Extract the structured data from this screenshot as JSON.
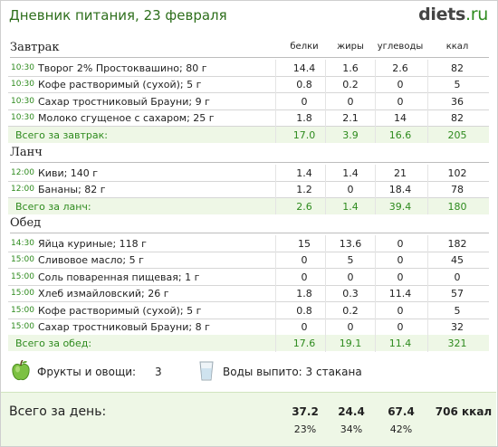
{
  "header": {
    "title": "Дневник питания, 23 февраля",
    "logo_main": "diets",
    "logo_suffix": ".ru"
  },
  "columns": {
    "proteins": "белки",
    "fats": "жиры",
    "carbs": "углеводы",
    "kcal": "ккал"
  },
  "sections": [
    {
      "title": "Завтрак",
      "items": [
        {
          "time": "10:30",
          "name": "Творог 2% Простоквашино; 80 г",
          "p": "14.4",
          "f": "1.6",
          "c": "2.6",
          "k": "82"
        },
        {
          "time": "10:30",
          "name": "Кофе растворимый (сухой); 5 г",
          "p": "0.8",
          "f": "0.2",
          "c": "0",
          "k": "5"
        },
        {
          "time": "10:30",
          "name": "Сахар тростниковый Брауни; 9 г",
          "p": "0",
          "f": "0",
          "c": "0",
          "k": "36"
        },
        {
          "time": "10:30",
          "name": "Молоко сгущеное с сахаром; 25 г",
          "p": "1.8",
          "f": "2.1",
          "c": "14",
          "k": "82"
        }
      ],
      "total": {
        "label": "Всего за завтрак:",
        "p": "17.0",
        "f": "3.9",
        "c": "16.6",
        "k": "205"
      }
    },
    {
      "title": "Ланч",
      "items": [
        {
          "time": "12:00",
          "name": "Киви; 140 г",
          "p": "1.4",
          "f": "1.4",
          "c": "21",
          "k": "102"
        },
        {
          "time": "12:00",
          "name": "Бананы; 82 г",
          "p": "1.2",
          "f": "0",
          "c": "18.4",
          "k": "78"
        }
      ],
      "total": {
        "label": "Всего за ланч:",
        "p": "2.6",
        "f": "1.4",
        "c": "39.4",
        "k": "180"
      }
    },
    {
      "title": "Обед",
      "items": [
        {
          "time": "14:30",
          "name": "Яйца куриные; 118 г",
          "p": "15",
          "f": "13.6",
          "c": "0",
          "k": "182"
        },
        {
          "time": "15:00",
          "name": "Сливовое масло; 5 г",
          "p": "0",
          "f": "5",
          "c": "0",
          "k": "45"
        },
        {
          "time": "15:00",
          "name": "Соль поваренная пищевая; 1 г",
          "p": "0",
          "f": "0",
          "c": "0",
          "k": "0"
        },
        {
          "time": "15:00",
          "name": "Хлеб измайловский; 26 г",
          "p": "1.8",
          "f": "0.3",
          "c": "11.4",
          "k": "57"
        },
        {
          "time": "15:00",
          "name": "Кофе растворимый (сухой); 5 г",
          "p": "0.8",
          "f": "0.2",
          "c": "0",
          "k": "5"
        },
        {
          "time": "15:00",
          "name": "Сахар тростниковый Брауни; 8 г",
          "p": "0",
          "f": "0",
          "c": "0",
          "k": "32"
        }
      ],
      "total": {
        "label": "Всего за обед:",
        "p": "17.6",
        "f": "19.1",
        "c": "11.4",
        "k": "321"
      }
    }
  ],
  "extras": {
    "fruits_label": "Фрукты и овощи:",
    "fruits_value": "3",
    "water_label": "Воды выпито: 3 стакана",
    "apple_icon": "apple-icon",
    "glass_icon": "water-glass-icon"
  },
  "day_total": {
    "label": "Всего за день:",
    "p": "37.2",
    "f": "24.4",
    "c": "67.4",
    "k": "706 ккал",
    "p_pct": "23%",
    "f_pct": "34%",
    "c_pct": "42%"
  },
  "colors": {
    "accent_green": "#2e8b1e",
    "title_green": "#2e6f1c",
    "total_bg": "#eef7e6"
  }
}
